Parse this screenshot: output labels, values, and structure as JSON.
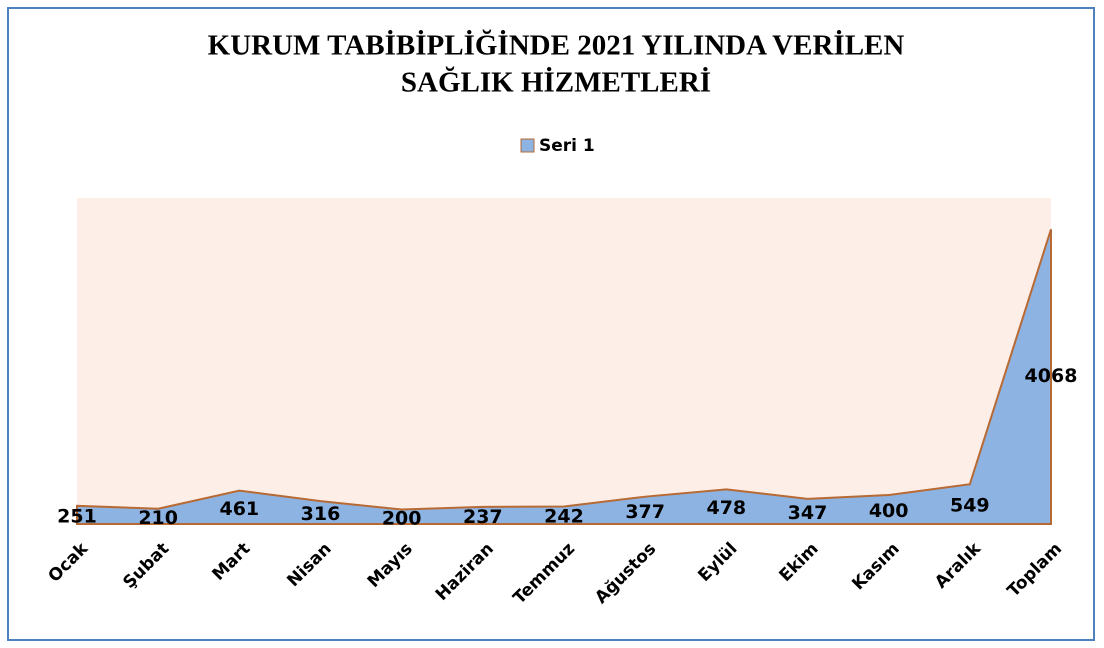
{
  "chart_data": {
    "type": "area",
    "title": [
      "KURUM TABİBİPLİĞİNDE 2021 YILINDA VERİLEN",
      "SAĞLIK HİZMETLERİ"
    ],
    "categories": [
      "Ocak",
      "Şubat",
      "Mart",
      "Nisan",
      "Mayıs",
      "Haziran",
      "Temmuz",
      "Ağustos",
      "Eylül",
      "Ekim",
      "Kasım",
      "Aralık",
      "Toplam"
    ],
    "series": [
      {
        "name": "Seri 1",
        "color": "#8db3e2",
        "values": [
          251,
          210,
          461,
          316,
          200,
          237,
          242,
          377,
          478,
          347,
          400,
          549,
          4068
        ]
      }
    ],
    "ylim": [
      0,
      4500
    ],
    "legend": "top"
  }
}
